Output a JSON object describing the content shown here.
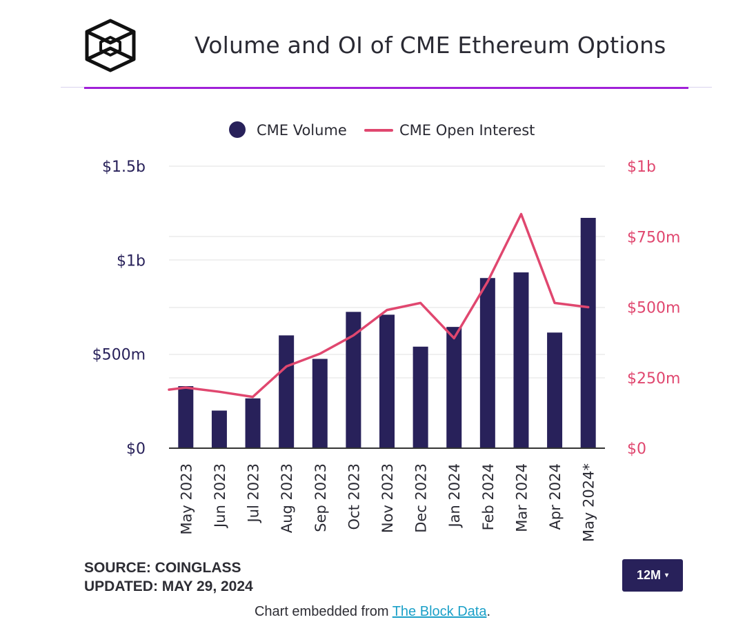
{
  "header": {
    "title": "Volume and OI of CME Ethereum Options"
  },
  "chart_data": {
    "type": "bar",
    "title": "Volume and OI of CME Ethereum Options",
    "categories": [
      "May 2023",
      "Jun 2023",
      "Jul 2023",
      "Aug 2023",
      "Sep 2023",
      "Oct 2023",
      "Nov 2023",
      "Dec 2023",
      "Jan 2024",
      "Feb 2024",
      "Mar 2024",
      "Apr 2024",
      "May 2024*"
    ],
    "series": [
      {
        "name": "CME Volume",
        "type": "bar",
        "axis": "left",
        "color": "#28215a",
        "values": [
          330,
          200,
          265,
          600,
          475,
          725,
          710,
          540,
          645,
          905,
          935,
          615,
          1225
        ]
      },
      {
        "name": "CME Open Interest",
        "type": "line",
        "axis": "right",
        "color": "#e0476f",
        "values": [
          215,
          200,
          182,
          290,
          335,
          400,
          490,
          515,
          390,
          590,
          830,
          515,
          500
        ]
      }
    ],
    "legend": [
      "CME Volume",
      "CME Open Interest"
    ],
    "left_axis": {
      "unit": "USD millions",
      "ylim": [
        0,
        1500
      ],
      "ticks": [
        0,
        500,
        1000,
        1500
      ],
      "tick_labels": [
        "$0",
        "$500m",
        "$1b",
        "$1.5b"
      ]
    },
    "right_axis": {
      "unit": "USD millions",
      "ylim": [
        0,
        1000
      ],
      "ticks": [
        0,
        250,
        500,
        750,
        1000
      ],
      "tick_labels": [
        "$0",
        "$250m",
        "$500m",
        "$750m",
        "$1b"
      ]
    },
    "grid": true,
    "legend_position": "top-center"
  },
  "footer": {
    "source": "SOURCE: COINGLASS",
    "updated": "UPDATED: MAY 29, 2024",
    "range_label": "12M",
    "range_caret": "▾",
    "embed_prefix": "Chart embedded from ",
    "embed_link": "The Block Data",
    "embed_suffix": "."
  }
}
